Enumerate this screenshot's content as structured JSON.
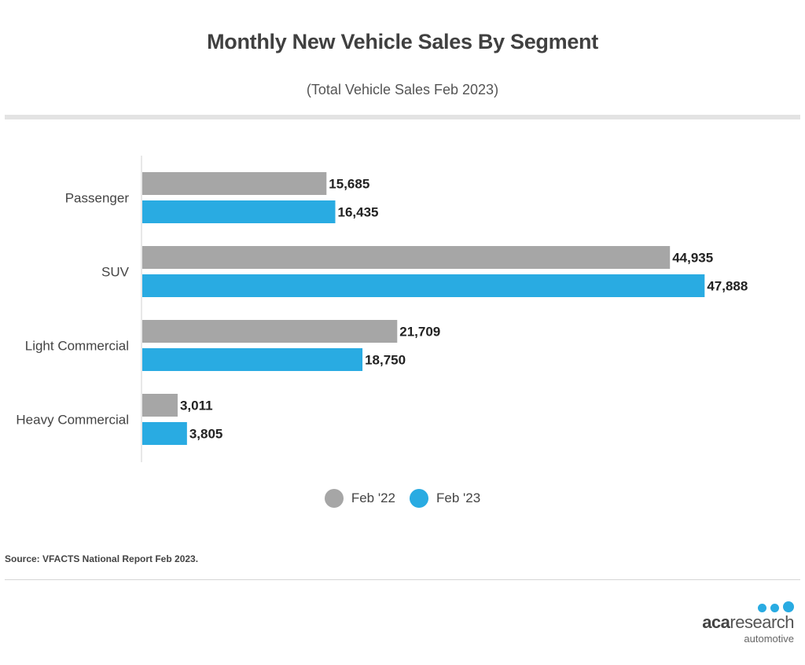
{
  "header": {
    "title": "Monthly New Vehicle Sales By Segment",
    "subtitle": "(Total Vehicle Sales Feb 2023)"
  },
  "chart_data": {
    "type": "bar",
    "orientation": "horizontal",
    "title": "Monthly New Vehicle Sales By Segment",
    "subtitle": "(Total Vehicle Sales Feb 2023)",
    "categories": [
      "Passenger",
      "SUV",
      "Light Commercial",
      "Heavy Commercial"
    ],
    "series": [
      {
        "name": "Feb '22",
        "color": "#a6a6a6",
        "values": [
          15685,
          44935,
          21709,
          3011
        ]
      },
      {
        "name": "Feb '23",
        "color": "#29abe2",
        "values": [
          16435,
          47888,
          18750,
          3805
        ]
      }
    ],
    "data_labels": [
      [
        "15,685",
        "44,935",
        "21,709",
        "3,011"
      ],
      [
        "16,435",
        "47,888",
        "18,750",
        "3,805"
      ]
    ],
    "xlim": [
      0,
      48000
    ],
    "grid": false,
    "legend": "bottom-center"
  },
  "legend": [
    {
      "label": "Feb '22",
      "color": "#a6a6a6"
    },
    {
      "label": "Feb '23",
      "color": "#29abe2"
    }
  ],
  "footer": {
    "source": "Source: VFACTS National Report Feb 2023."
  },
  "logo": {
    "word_bold": "aca",
    "word_rest": "research",
    "sub": "automotive"
  }
}
